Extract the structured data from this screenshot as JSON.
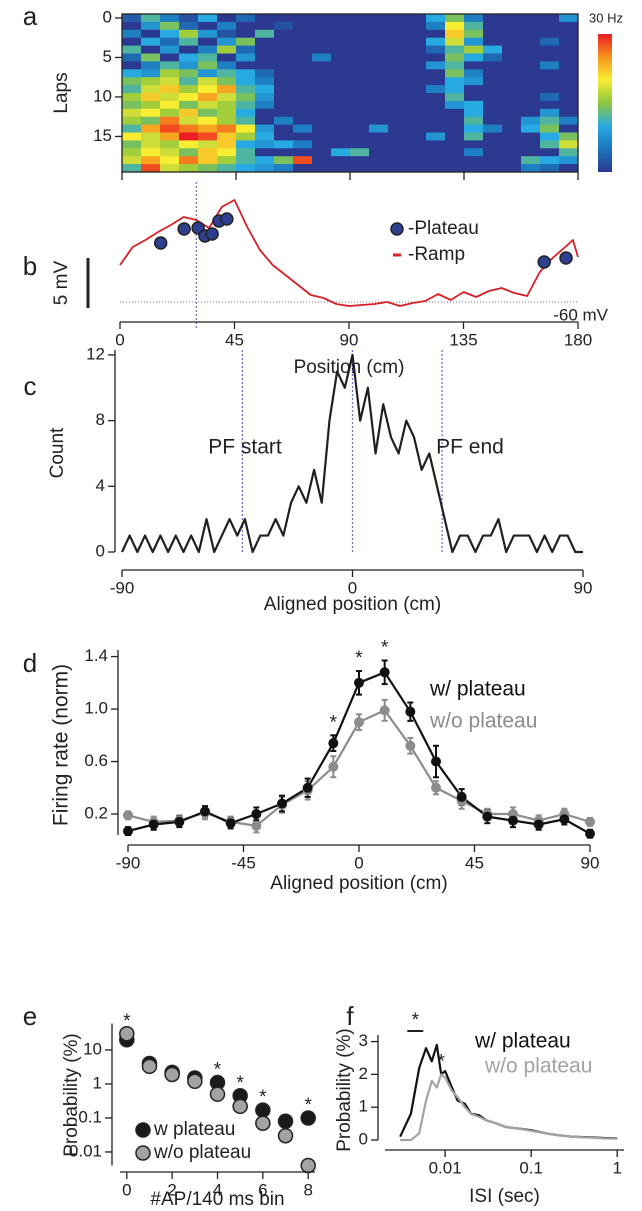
{
  "chart_data": [
    {
      "type": "heatmap",
      "panel": "a",
      "ylabel": "Laps",
      "colorbar_label": "30 Hz",
      "xlim": [
        0,
        180
      ],
      "ylim": [
        19.5,
        -0.5
      ],
      "yticks": [
        0,
        5,
        10,
        15
      ],
      "zlim": [
        0,
        30
      ],
      "colorscale": [
        "#2b3990",
        "#1c75bc",
        "#27aae1",
        "#8dc63f",
        "#f9ed32",
        "#f7941d",
        "#ed1c24"
      ],
      "z": [
        [
          3,
          12,
          6,
          2,
          10,
          0,
          4,
          0,
          0,
          0,
          0,
          0,
          0,
          0,
          0,
          0,
          10,
          14,
          6,
          0,
          0,
          0,
          0,
          8
        ],
        [
          0,
          8,
          14,
          4,
          0,
          6,
          0,
          0,
          2,
          0,
          0,
          0,
          0,
          0,
          0,
          0,
          6,
          20,
          12,
          0,
          0,
          0,
          0,
          0
        ],
        [
          6,
          0,
          10,
          16,
          8,
          2,
          0,
          12,
          0,
          0,
          0,
          0,
          0,
          0,
          0,
          0,
          0,
          22,
          14,
          0,
          0,
          0,
          0,
          0
        ],
        [
          0,
          10,
          4,
          12,
          0,
          8,
          14,
          0,
          0,
          0,
          0,
          0,
          0,
          0,
          0,
          0,
          10,
          18,
          8,
          0,
          0,
          0,
          4,
          0
        ],
        [
          12,
          0,
          8,
          0,
          6,
          16,
          4,
          0,
          0,
          0,
          0,
          0,
          0,
          0,
          0,
          0,
          4,
          12,
          16,
          10,
          0,
          0,
          0,
          0
        ],
        [
          4,
          14,
          0,
          10,
          12,
          0,
          8,
          0,
          0,
          0,
          6,
          0,
          0,
          0,
          0,
          0,
          0,
          14,
          10,
          4,
          0,
          0,
          0,
          0
        ],
        [
          0,
          6,
          12,
          8,
          14,
          6,
          0,
          0,
          0,
          0,
          0,
          0,
          0,
          0,
          0,
          0,
          8,
          12,
          0,
          0,
          0,
          0,
          6,
          0
        ],
        [
          10,
          8,
          16,
          14,
          8,
          12,
          10,
          4,
          0,
          0,
          0,
          0,
          0,
          0,
          0,
          0,
          0,
          14,
          6,
          0,
          0,
          0,
          0,
          0
        ],
        [
          14,
          16,
          18,
          12,
          18,
          14,
          10,
          6,
          0,
          0,
          0,
          0,
          0,
          0,
          0,
          0,
          0,
          10,
          8,
          0,
          0,
          0,
          0,
          0
        ],
        [
          12,
          18,
          22,
          16,
          20,
          24,
          12,
          10,
          0,
          0,
          0,
          0,
          0,
          0,
          0,
          0,
          6,
          10,
          0,
          0,
          0,
          0,
          0,
          0
        ],
        [
          16,
          22,
          18,
          20,
          24,
          18,
          14,
          8,
          0,
          0,
          0,
          0,
          0,
          0,
          0,
          0,
          0,
          12,
          0,
          0,
          0,
          0,
          4,
          0
        ],
        [
          14,
          16,
          20,
          14,
          18,
          16,
          12,
          6,
          0,
          0,
          0,
          0,
          0,
          0,
          0,
          0,
          0,
          8,
          10,
          0,
          0,
          0,
          0,
          0
        ],
        [
          18,
          20,
          16,
          22,
          14,
          16,
          10,
          0,
          0,
          0,
          0,
          0,
          0,
          0,
          0,
          0,
          0,
          0,
          10,
          0,
          0,
          0,
          8,
          0
        ],
        [
          16,
          14,
          26,
          18,
          20,
          16,
          12,
          0,
          6,
          0,
          0,
          0,
          0,
          0,
          0,
          0,
          0,
          0,
          12,
          0,
          0,
          8,
          12,
          6
        ],
        [
          12,
          24,
          28,
          26,
          24,
          26,
          20,
          8,
          0,
          6,
          0,
          0,
          0,
          8,
          0,
          0,
          0,
          0,
          10,
          6,
          0,
          10,
          14,
          0
        ],
        [
          20,
          18,
          24,
          30,
          28,
          22,
          16,
          10,
          0,
          0,
          0,
          0,
          0,
          0,
          0,
          0,
          8,
          0,
          12,
          0,
          0,
          0,
          10,
          14
        ],
        [
          14,
          18,
          16,
          20,
          18,
          22,
          10,
          8,
          10,
          6,
          0,
          0,
          0,
          0,
          0,
          0,
          0,
          0,
          0,
          0,
          0,
          0,
          12,
          18
        ],
        [
          16,
          20,
          18,
          14,
          22,
          20,
          12,
          0,
          0,
          0,
          0,
          10,
          12,
          0,
          0,
          0,
          0,
          0,
          6,
          0,
          0,
          0,
          0,
          12
        ],
        [
          18,
          24,
          20,
          26,
          22,
          16,
          12,
          10,
          14,
          28,
          0,
          0,
          0,
          0,
          0,
          0,
          0,
          0,
          0,
          0,
          0,
          12,
          10,
          8
        ],
        [
          12,
          28,
          18,
          16,
          14,
          12,
          10,
          8,
          6,
          0,
          0,
          0,
          0,
          0,
          0,
          0,
          0,
          0,
          0,
          0,
          0,
          6,
          4,
          0
        ]
      ]
    },
    {
      "type": "line",
      "panel": "b",
      "xlabel": "Position (cm)",
      "xlim": [
        0,
        180
      ],
      "xticks": [
        0,
        45,
        90,
        135,
        180
      ],
      "ylim": [
        -62,
        -48
      ],
      "vlines": [
        30
      ],
      "vline_color": "#6a78d1",
      "baseline": {
        "value": -60,
        "label": "-60 mV"
      },
      "scale_bar": {
        "value": 5,
        "label": "5 mV"
      },
      "legend_style": "marker",
      "series": [
        {
          "name": "-Plateau",
          "mode": "markers",
          "color": "#2e3f8f",
          "x": [
            16,
            25.2,
            30.7,
            33.4,
            36.2,
            38.9,
            42,
            166.7,
            175.3
          ],
          "values": [
            -54.1,
            -52.7,
            -52.6,
            -53.4,
            -53.2,
            -51.9,
            -51.7,
            -56,
            -55.6
          ]
        },
        {
          "name": "-Ramp",
          "mode": "lines",
          "color": "#d71f26",
          "x": [
            0,
            5,
            10,
            15,
            20,
            25,
            30,
            35,
            40,
            45,
            50,
            55,
            60,
            65,
            70,
            75,
            80,
            85,
            90,
            95,
            100,
            105,
            110,
            115,
            120,
            125,
            130,
            135,
            140,
            145,
            150,
            155,
            160,
            165,
            170,
            175,
            178,
            180
          ],
          "values": [
            -56.3,
            -54.5,
            -53.8,
            -53,
            -52.3,
            -51.5,
            -51.8,
            -52.6,
            -50.5,
            -49.8,
            -52.5,
            -54.8,
            -56.3,
            -57.3,
            -58.3,
            -59.3,
            -59.6,
            -60.2,
            -60.4,
            -60.3,
            -60.2,
            -60,
            -60.4,
            -60.1,
            -59.9,
            -59.2,
            -59.8,
            -59,
            -59.5,
            -58.9,
            -58.6,
            -59.1,
            -59.4,
            -57,
            -55.6,
            -54.5,
            -53.8,
            -55.5
          ]
        }
      ]
    },
    {
      "type": "line",
      "panel": "c",
      "xlabel": "Aligned position (cm)",
      "ylabel": "Count",
      "xlim": [
        -90,
        90
      ],
      "xticks": [
        -90,
        0,
        90
      ],
      "ylim": [
        0,
        12.3
      ],
      "yticks": [
        0,
        4,
        8,
        12
      ],
      "vlines": [
        -43,
        0,
        35
      ],
      "vline_color": "#6a78d1",
      "annotations": [
        "PF start",
        "PF end"
      ],
      "series": [
        {
          "mode": "lines",
          "color": "#231f20",
          "x": [
            -90,
            -87,
            -84,
            -81,
            -78,
            -75,
            -72,
            -69,
            -66,
            -63,
            -60,
            -57,
            -54,
            -51,
            -48,
            -45,
            -42,
            -39,
            -36,
            -33,
            -30,
            -27,
            -24,
            -21,
            -18,
            -15,
            -12,
            -9,
            -6,
            -3,
            0,
            3,
            6,
            9,
            12,
            15,
            18,
            21,
            24,
            27,
            30,
            33,
            36,
            39,
            42,
            45,
            48,
            51,
            54,
            57,
            60,
            63,
            66,
            69,
            72,
            75,
            78,
            81,
            84,
            87,
            90
          ],
          "values": [
            0,
            1,
            0,
            1,
            0,
            1,
            0,
            1,
            0,
            1,
            0,
            2,
            0,
            1,
            2,
            1,
            2,
            0,
            1,
            1,
            2,
            1,
            3,
            4,
            3,
            5,
            3,
            8,
            11,
            10,
            12,
            8,
            10,
            6,
            9,
            7,
            6,
            8,
            7,
            5,
            6,
            4,
            2,
            0,
            1,
            1,
            0,
            1,
            1,
            2,
            0,
            1,
            1,
            1,
            0,
            1,
            0,
            1,
            1,
            0,
            0
          ]
        }
      ]
    },
    {
      "type": "line",
      "panel": "d",
      "xlabel": "Aligned position (cm)",
      "ylabel": "Firing rate (norm)",
      "xlim": [
        -90,
        90
      ],
      "xticks": [
        -90,
        -45,
        0,
        45,
        90
      ],
      "ylim": [
        0.04,
        1.45
      ],
      "yticks": [
        0.2,
        0.6,
        {
          "value": 1,
          "label": "1.0"
        },
        1.4
      ],
      "legend_style": "colored-text",
      "stars": {
        "x": [
          -10,
          0,
          10
        ],
        "label": "*"
      },
      "x": [
        -90,
        -80,
        -70,
        -60,
        -50,
        -40,
        -30,
        -20,
        -10,
        0,
        10,
        20,
        30,
        40,
        50,
        60,
        70,
        80,
        90
      ],
      "series": [
        {
          "name": "w/o plateau",
          "mode": "lines+markers",
          "color": "#8c8c8c",
          "values": [
            0.19,
            0.14,
            0.15,
            0.21,
            0.14,
            0.11,
            0.27,
            0.38,
            0.56,
            0.9,
            0.99,
            0.72,
            0.4,
            0.3,
            0.2,
            0.2,
            0.15,
            0.2,
            0.14
          ],
          "errors": [
            0.03,
            0.04,
            0.04,
            0.05,
            0.04,
            0.05,
            0.06,
            0.07,
            0.08,
            0.06,
            0.08,
            0.06,
            0.05,
            0.06,
            0.04,
            0.05,
            0.04,
            0.04,
            0.03
          ]
        },
        {
          "name": "w/ plateau",
          "mode": "lines+markers",
          "color": "#111111",
          "values": [
            0.07,
            0.12,
            0.14,
            0.22,
            0.13,
            0.2,
            0.28,
            0.4,
            0.74,
            1.2,
            1.28,
            0.98,
            0.6,
            0.33,
            0.18,
            0.15,
            0.12,
            0.16,
            0.05
          ],
          "errors": [
            0.03,
            0.04,
            0.04,
            0.04,
            0.04,
            0.05,
            0.06,
            0.07,
            0.06,
            0.09,
            0.09,
            0.07,
            0.12,
            0.06,
            0.05,
            0.05,
            0.04,
            0.04,
            0.03
          ]
        }
      ]
    },
    {
      "type": "scatter",
      "panel": "e",
      "xlabel": "#AP/140 ms bin",
      "ylabel": "Probability (%)",
      "xlim": [
        -0.3,
        8.3
      ],
      "xticks": [
        0,
        2,
        4,
        6,
        8
      ],
      "ylog": true,
      "ylim": [
        0.004,
        60
      ],
      "yticks": [
        0.01,
        0.1,
        1,
        10
      ],
      "legend_style": "marker",
      "stars": {
        "x": [
          0,
          4,
          5,
          6,
          8
        ],
        "label": "*"
      },
      "x": [
        0,
        1,
        2,
        3,
        4,
        5,
        6,
        7,
        8
      ],
      "series": [
        {
          "name": "w plateau",
          "mode": "markers",
          "color": "#1a1a1a",
          "values": [
            20,
            4,
            2.2,
            1.5,
            1.1,
            0.45,
            0.17,
            0.08,
            0.1
          ]
        },
        {
          "name": "w/o plateau",
          "mode": "markers",
          "color": "#a3a3a3",
          "values": [
            30,
            3.3,
            1.9,
            1.2,
            0.5,
            0.22,
            0.07,
            0.03,
            0.004
          ]
        }
      ]
    },
    {
      "type": "line",
      "panel": "f",
      "xlabel": "ISI (sec)",
      "ylabel": "Probability (%)",
      "xlog": true,
      "xlim": [
        0.002,
        1.2
      ],
      "xticks": [
        0.01,
        0.1,
        1
      ],
      "ylim": [
        0,
        3.2
      ],
      "yticks": [
        0,
        1,
        2,
        3
      ],
      "legend_style": "colored-text",
      "stars": {
        "x": [
          0.0045,
          0.009
        ],
        "label": "*"
      },
      "x": [
        0.003,
        0.004,
        0.005,
        0.006,
        0.007,
        0.008,
        0.009,
        0.01,
        0.012,
        0.014,
        0.017,
        0.02,
        0.025,
        0.03,
        0.04,
        0.05,
        0.07,
        0.1,
        0.15,
        0.2,
        0.3,
        0.5,
        0.7,
        1
      ],
      "series": [
        {
          "name": "w/ plateau",
          "mode": "lines",
          "color": "#111111",
          "values": [
            0.1,
            0.8,
            2.2,
            2.8,
            2.4,
            2.9,
            2,
            2.1,
            1.6,
            1.2,
            1.1,
            0.8,
            0.75,
            0.6,
            0.5,
            0.4,
            0.35,
            0.3,
            0.2,
            0.15,
            0.1,
            0.08,
            0.06,
            0.05
          ]
        },
        {
          "name": "w/o plateau",
          "mode": "lines",
          "color": "#a3a3a3",
          "values": [
            0,
            0,
            0.2,
            1.2,
            1.8,
            1.6,
            2,
            1.9,
            1.5,
            1.3,
            1,
            0.8,
            0.7,
            0.6,
            0.5,
            0.4,
            0.35,
            0.28,
            0.2,
            0.15,
            0.1,
            0.07,
            0.05,
            0.04
          ]
        }
      ]
    }
  ]
}
